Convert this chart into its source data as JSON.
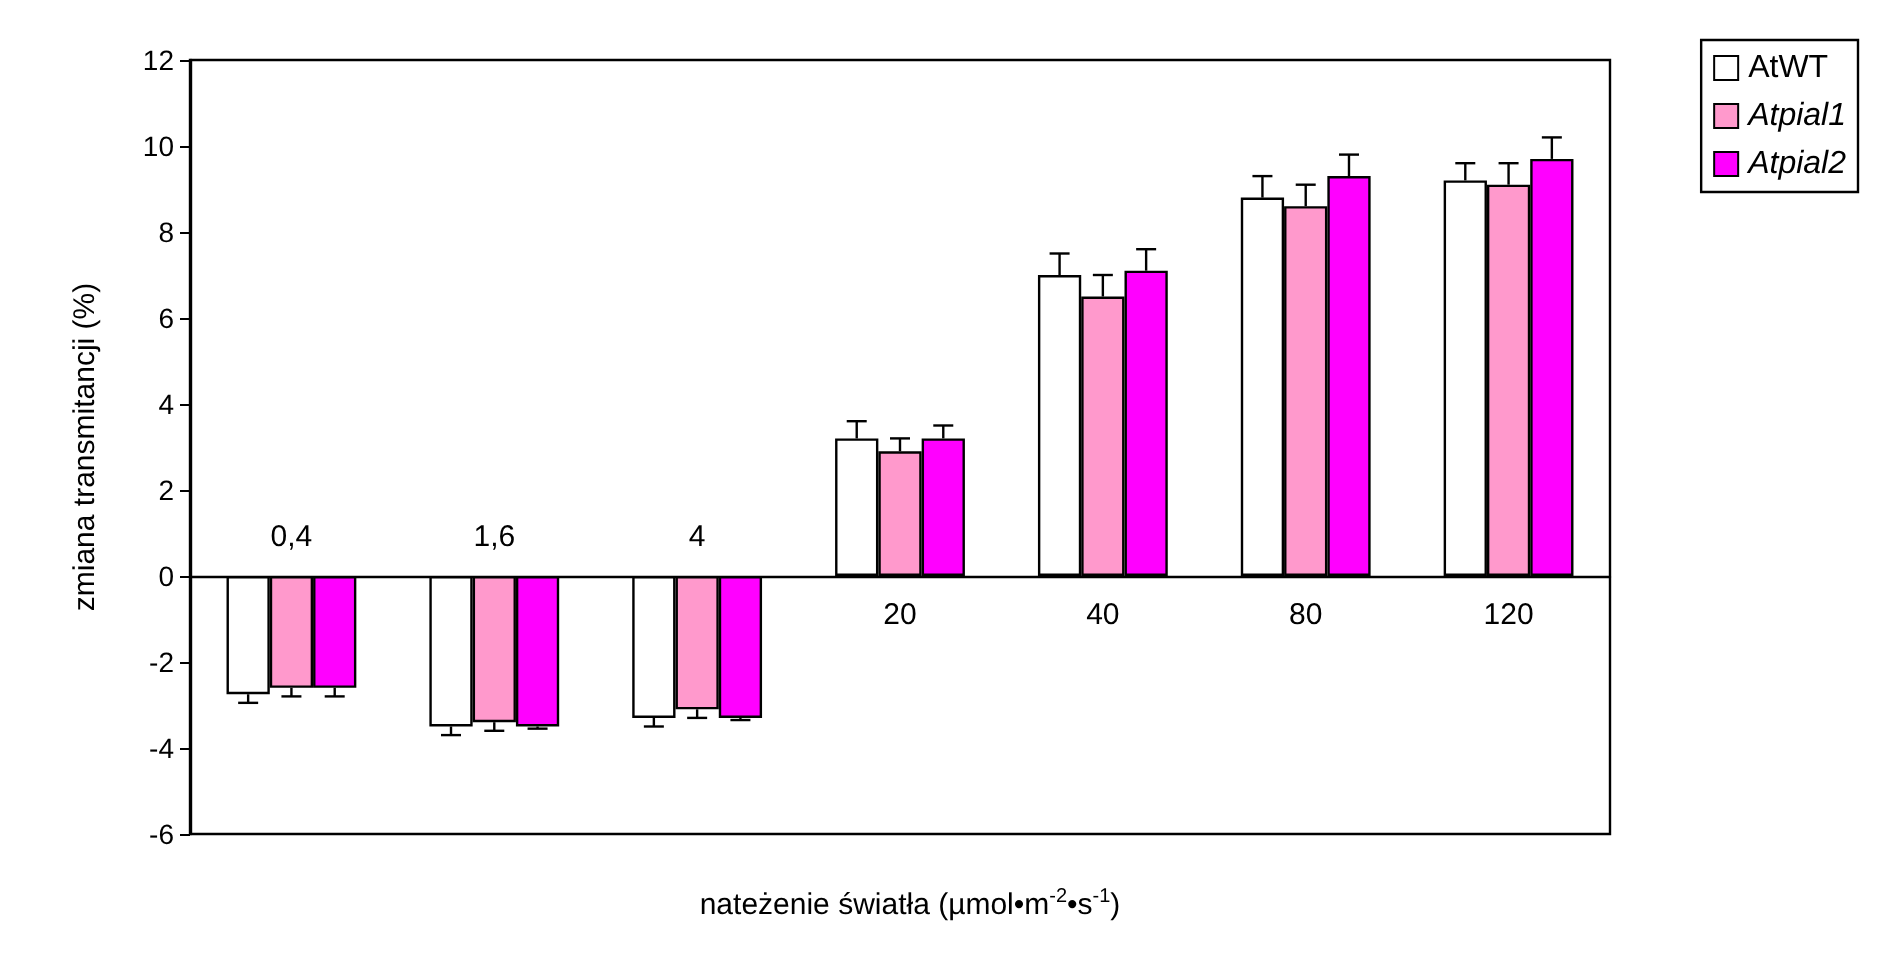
{
  "chart_data": {
    "type": "bar",
    "xlabel": "nateżenie światła (µmol•m$^{-2}$•s$^{-1}$)",
    "ylabel": "zmiana transmitancji (%)",
    "categories": [
      "0,4",
      "1,6",
      "4",
      "20",
      "40",
      "80",
      "120"
    ],
    "series": [
      {
        "name": "AtWT",
        "color": "#ffffff",
        "values": [
          -2.75,
          -3.5,
          -3.3,
          3.2,
          7.0,
          8.8,
          9.2
        ],
        "errors": [
          [
            -2.95,
            -2.75
          ],
          [
            -3.7,
            -3.5
          ],
          [
            -3.5,
            -3.3
          ],
          [
            3.2,
            3.6
          ],
          [
            7.0,
            7.5
          ],
          [
            8.8,
            9.3
          ],
          [
            9.2,
            9.6
          ]
        ]
      },
      {
        "name": "Atpial1",
        "color": "#ff99cc",
        "values": [
          -2.6,
          -3.4,
          -3.1,
          2.9,
          6.5,
          8.6,
          9.1
        ],
        "errors": [
          [
            -2.8,
            -2.6
          ],
          [
            -3.6,
            -3.4
          ],
          [
            -3.3,
            -3.1
          ],
          [
            2.9,
            3.2
          ],
          [
            6.5,
            7.0
          ],
          [
            8.6,
            9.1
          ],
          [
            9.1,
            9.6
          ]
        ]
      },
      {
        "name": "Atpial2",
        "color": "#ff00ff",
        "values": [
          -2.6,
          -3.5,
          -3.3,
          3.2,
          7.1,
          9.3,
          9.7
        ],
        "errors": [
          [
            -2.8,
            -2.6
          ],
          [
            -3.55,
            -3.5
          ],
          [
            -3.35,
            -3.3
          ],
          [
            3.2,
            3.5
          ],
          [
            7.1,
            7.6
          ],
          [
            9.3,
            9.8
          ],
          [
            9.7,
            10.2
          ]
        ]
      }
    ],
    "ylim": [
      -6,
      12
    ],
    "yticks": [
      -6,
      -4,
      -2,
      0,
      2,
      4,
      6,
      8,
      10,
      12
    ],
    "grid": false,
    "legend": "top right"
  }
}
